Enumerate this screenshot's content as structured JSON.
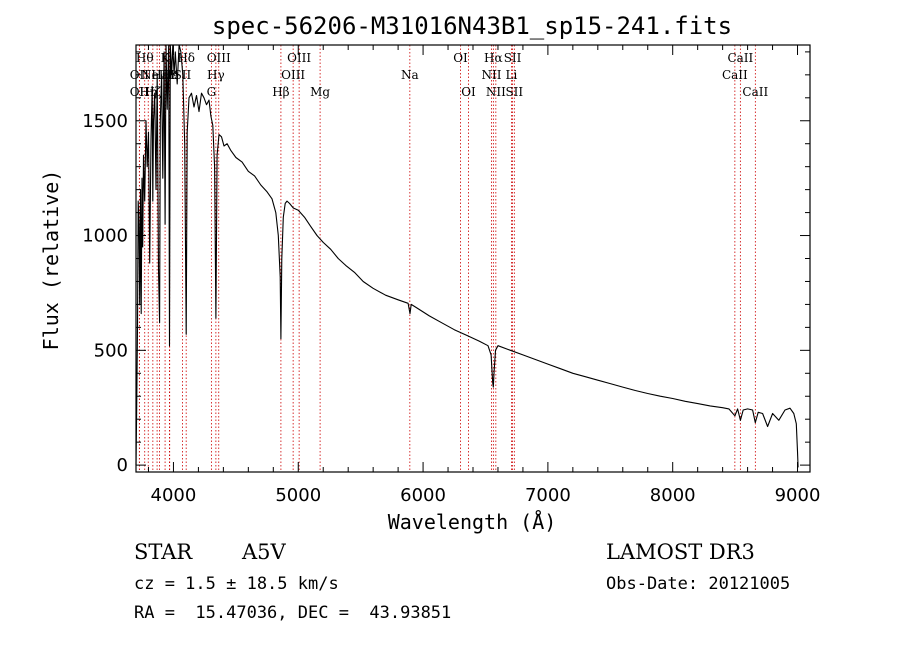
{
  "chart_data": {
    "type": "line",
    "title": "spec-56206-M31016N43B1_sp15-241.fits",
    "xlabel": "Wavelength (Å)",
    "ylabel": "Flux (relative)",
    "xlim": [
      3700,
      9100
    ],
    "ylim": [
      -30,
      1830
    ],
    "xticks": [
      {
        "value": 4000,
        "label": "4000"
      },
      {
        "value": 5000,
        "label": "5000"
      },
      {
        "value": 6000,
        "label": "6000"
      },
      {
        "value": 7000,
        "label": "7000"
      },
      {
        "value": 8000,
        "label": "8000"
      },
      {
        "value": 9000,
        "label": "9000"
      }
    ],
    "yticks": [
      {
        "value": 0,
        "label": "0"
      },
      {
        "value": 500,
        "label": "500"
      },
      {
        "value": 1000,
        "label": "1000"
      },
      {
        "value": 1500,
        "label": "1500"
      }
    ],
    "series": [
      {
        "name": "spectrum",
        "x": [
          3700,
          3706,
          3712,
          3718,
          3724,
          3730,
          3736,
          3742,
          3748,
          3754,
          3760,
          3770,
          3780,
          3790,
          3800,
          3810,
          3820,
          3830,
          3835,
          3840,
          3850,
          3860,
          3870,
          3880,
          3889,
          3895,
          3905,
          3915,
          3925,
          3933,
          3940,
          3950,
          3962,
          3968,
          3975,
          3985,
          3995,
          4005,
          4015,
          4030,
          4045,
          4060,
          4075,
          4090,
          4102,
          4110,
          4125,
          4145,
          4165,
          4185,
          4205,
          4225,
          4245,
          4265,
          4285,
          4300,
          4315,
          4330,
          4340,
          4350,
          4365,
          4385,
          4405,
          4430,
          4460,
          4500,
          4550,
          4600,
          4650,
          4700,
          4750,
          4790,
          4820,
          4840,
          4855,
          4861,
          4868,
          4880,
          4895,
          4910,
          4930,
          4960,
          5000,
          5050,
          5100,
          5150,
          5200,
          5260,
          5320,
          5380,
          5450,
          5520,
          5600,
          5700,
          5800,
          5880,
          5895,
          5905,
          5950,
          6050,
          6150,
          6250,
          6350,
          6450,
          6520,
          6545,
          6558,
          6563,
          6568,
          6580,
          6600,
          6700,
          6800,
          6900,
          7000,
          7100,
          7200,
          7300,
          7400,
          7500,
          7600,
          7700,
          7800,
          7900,
          8000,
          8100,
          8200,
          8300,
          8400,
          8450,
          8498,
          8520,
          8542,
          8565,
          8600,
          8640,
          8662,
          8685,
          8720,
          8760,
          8800,
          8850,
          8900,
          8940,
          8970,
          8990,
          9000,
          9005
        ],
        "values": [
          0,
          250,
          600,
          1150,
          1050,
          700,
          1200,
          660,
          1250,
          950,
          1350,
          1150,
          1500,
          1300,
          1450,
          880,
          1420,
          1650,
          1150,
          1500,
          1620,
          1200,
          1700,
          850,
          620,
          1500,
          1700,
          1250,
          1800,
          1050,
          1900,
          1550,
          1850,
          520,
          1900,
          1700,
          1880,
          1700,
          1800,
          1660,
          1880,
          1800,
          1700,
          1400,
          570,
          1450,
          1600,
          1620,
          1560,
          1610,
          1540,
          1620,
          1600,
          1570,
          1590,
          1520,
          1480,
          1300,
          640,
          1350,
          1440,
          1430,
          1390,
          1400,
          1370,
          1340,
          1320,
          1280,
          1260,
          1220,
          1190,
          1160,
          1100,
          1000,
          820,
          550,
          900,
          1080,
          1140,
          1150,
          1140,
          1120,
          1110,
          1080,
          1040,
          1000,
          970,
          940,
          900,
          870,
          840,
          800,
          770,
          740,
          720,
          705,
          660,
          700,
          685,
          650,
          620,
          590,
          565,
          540,
          520,
          480,
          360,
          340,
          400,
          500,
          520,
          500,
          480,
          460,
          440,
          420,
          400,
          385,
          370,
          355,
          340,
          325,
          312,
          300,
          290,
          278,
          268,
          258,
          250,
          245,
          215,
          245,
          195,
          240,
          245,
          240,
          185,
          230,
          225,
          168,
          225,
          195,
          240,
          248,
          225,
          180,
          60,
          -10
        ]
      }
    ],
    "lines": [
      {
        "x": 3727,
        "label": "OII",
        "row": 2
      },
      {
        "x": 3727,
        "label": "OII",
        "row": 3
      },
      {
        "x": 3770,
        "label": "Hθ",
        "row": 1
      },
      {
        "x": 3798,
        "label": "Hη",
        "row": 3
      },
      {
        "x": 3835,
        "label": "Hζ",
        "row": 3
      },
      {
        "x": 3869,
        "label": "NeIII",
        "row": 2
      },
      {
        "x": 3889,
        "label": "Hε",
        "row": 2
      },
      {
        "x": 3933,
        "label": "K",
        "row": 1
      },
      {
        "x": 3968,
        "label": "H",
        "row": 2
      },
      {
        "x": 3970,
        "label": "Hε",
        "row": 2
      },
      {
        "x": 4072,
        "label": "SII",
        "row": 2
      },
      {
        "x": 4102,
        "label": "Hδ",
        "row": 1
      },
      {
        "x": 4304,
        "label": "G",
        "row": 3
      },
      {
        "x": 4340,
        "label": "Hγ",
        "row": 2
      },
      {
        "x": 4363,
        "label": "OIII",
        "row": 1
      },
      {
        "x": 4861,
        "label": "Hβ",
        "row": 3
      },
      {
        "x": 4959,
        "label": "OIII",
        "row": 2
      },
      {
        "x": 5007,
        "label": "OIII",
        "row": 1
      },
      {
        "x": 5175,
        "label": "Mg",
        "row": 3
      },
      {
        "x": 5894,
        "label": "Na",
        "row": 2
      },
      {
        "x": 6300,
        "label": "OI",
        "row": 1
      },
      {
        "x": 6364,
        "label": "OI",
        "row": 3
      },
      {
        "x": 6548,
        "label": "NII",
        "row": 2
      },
      {
        "x": 6563,
        "label": "Hα",
        "row": 1
      },
      {
        "x": 6583,
        "label": "NII",
        "row": 3
      },
      {
        "x": 6708,
        "label": "Li",
        "row": 2
      },
      {
        "x": 6717,
        "label": "SII",
        "row": 1
      },
      {
        "x": 6731,
        "label": "SII",
        "row": 3
      },
      {
        "x": 8498,
        "label": "CaII",
        "row": 2
      },
      {
        "x": 8542,
        "label": "CaII",
        "row": 1
      },
      {
        "x": 8662,
        "label": "CaII",
        "row": 3
      }
    ],
    "grid": false,
    "colors": {
      "spectrum": "#000000",
      "lines": "#cc0000"
    }
  },
  "info": {
    "objtype": "STAR",
    "subclass": "A5V",
    "cz": "cz = 1.5 ± 18.5 km/s",
    "radec": "RA =  15.47036, DEC =  43.93851",
    "survey": "LAMOST DR3",
    "obsdate": "Obs-Date: 20121005"
  }
}
